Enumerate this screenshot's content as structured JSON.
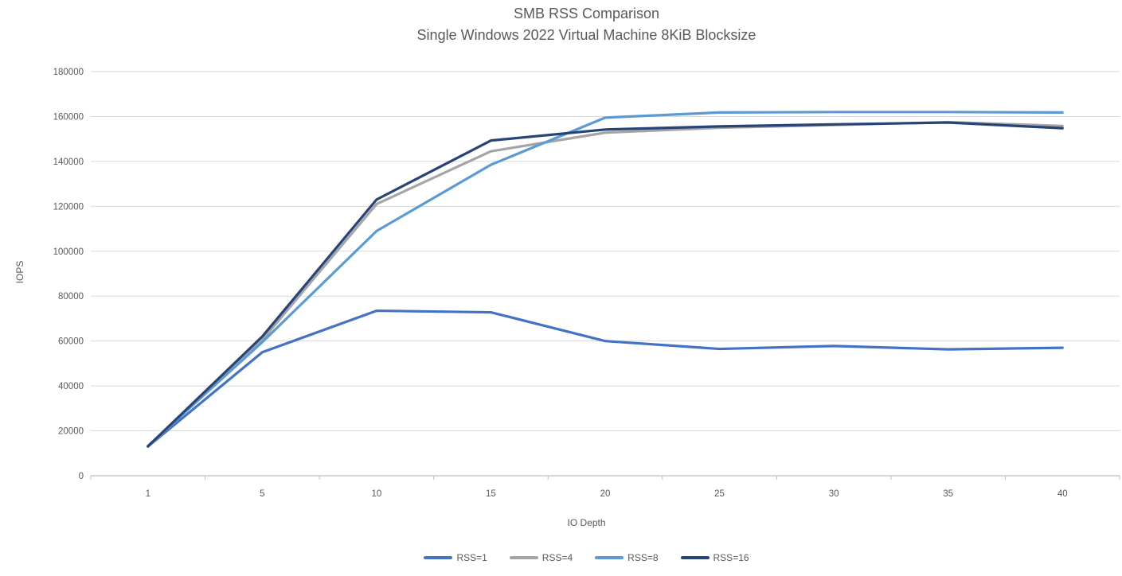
{
  "chart_data": {
    "type": "line",
    "title": "SMB RSS Comparison",
    "subtitle": "Single Windows 2022 Virtual Machine 8KiB Blocksize",
    "xlabel": "IO Depth",
    "ylabel": "IOPS",
    "categories": [
      1,
      5,
      10,
      15,
      20,
      25,
      30,
      35,
      40
    ],
    "ylim": [
      0,
      180000
    ],
    "ytick_step": 20000,
    "grid": "horizontal",
    "legend_position": "bottom",
    "series": [
      {
        "name": "RSS=1",
        "color": "#4472C4",
        "values": [
          13000,
          55000,
          73500,
          72800,
          60000,
          56500,
          57800,
          56300,
          57000
        ]
      },
      {
        "name": "RSS=4",
        "color": "#A5A5A5",
        "values": [
          13000,
          60500,
          121000,
          144500,
          152800,
          155000,
          156200,
          157500,
          155800
        ]
      },
      {
        "name": "RSS=8",
        "color": "#5B9BD5",
        "values": [
          13300,
          59500,
          109000,
          138500,
          159500,
          161800,
          162000,
          162000,
          161800
        ]
      },
      {
        "name": "RSS=16",
        "color": "#264478",
        "values": [
          13100,
          62000,
          123000,
          149300,
          154200,
          155600,
          156500,
          157300,
          154800
        ]
      }
    ],
    "colors": {
      "gridline": "#D9D9D9",
      "axis_line": "#BFBFBF",
      "tick_text": "#595959",
      "title_text": "#595959"
    }
  }
}
